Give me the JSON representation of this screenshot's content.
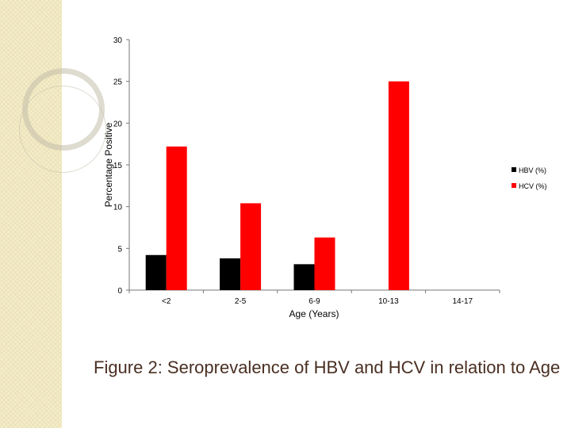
{
  "chart_data": {
    "type": "bar",
    "categories": [
      "<2",
      "2-5",
      "6-9",
      "10-13",
      "14-17"
    ],
    "series": [
      {
        "name": "HBV (%)",
        "values": [
          4.2,
          3.8,
          3.1,
          0,
          0
        ],
        "color": "#000000"
      },
      {
        "name": "HCV (%)",
        "values": [
          17.2,
          10.4,
          6.3,
          25.0,
          0
        ],
        "color": "#ff0000"
      }
    ],
    "title": "",
    "xlabel": "Age (Years)",
    "ylabel": "Percentage Positive",
    "ylim": [
      0,
      30
    ],
    "yticks": [
      0,
      5,
      10,
      15,
      20,
      25,
      30
    ],
    "legend": "right",
    "grid": false
  },
  "caption": "Figure 2: Seroprevalence of HBV and HCV in relation to Age"
}
